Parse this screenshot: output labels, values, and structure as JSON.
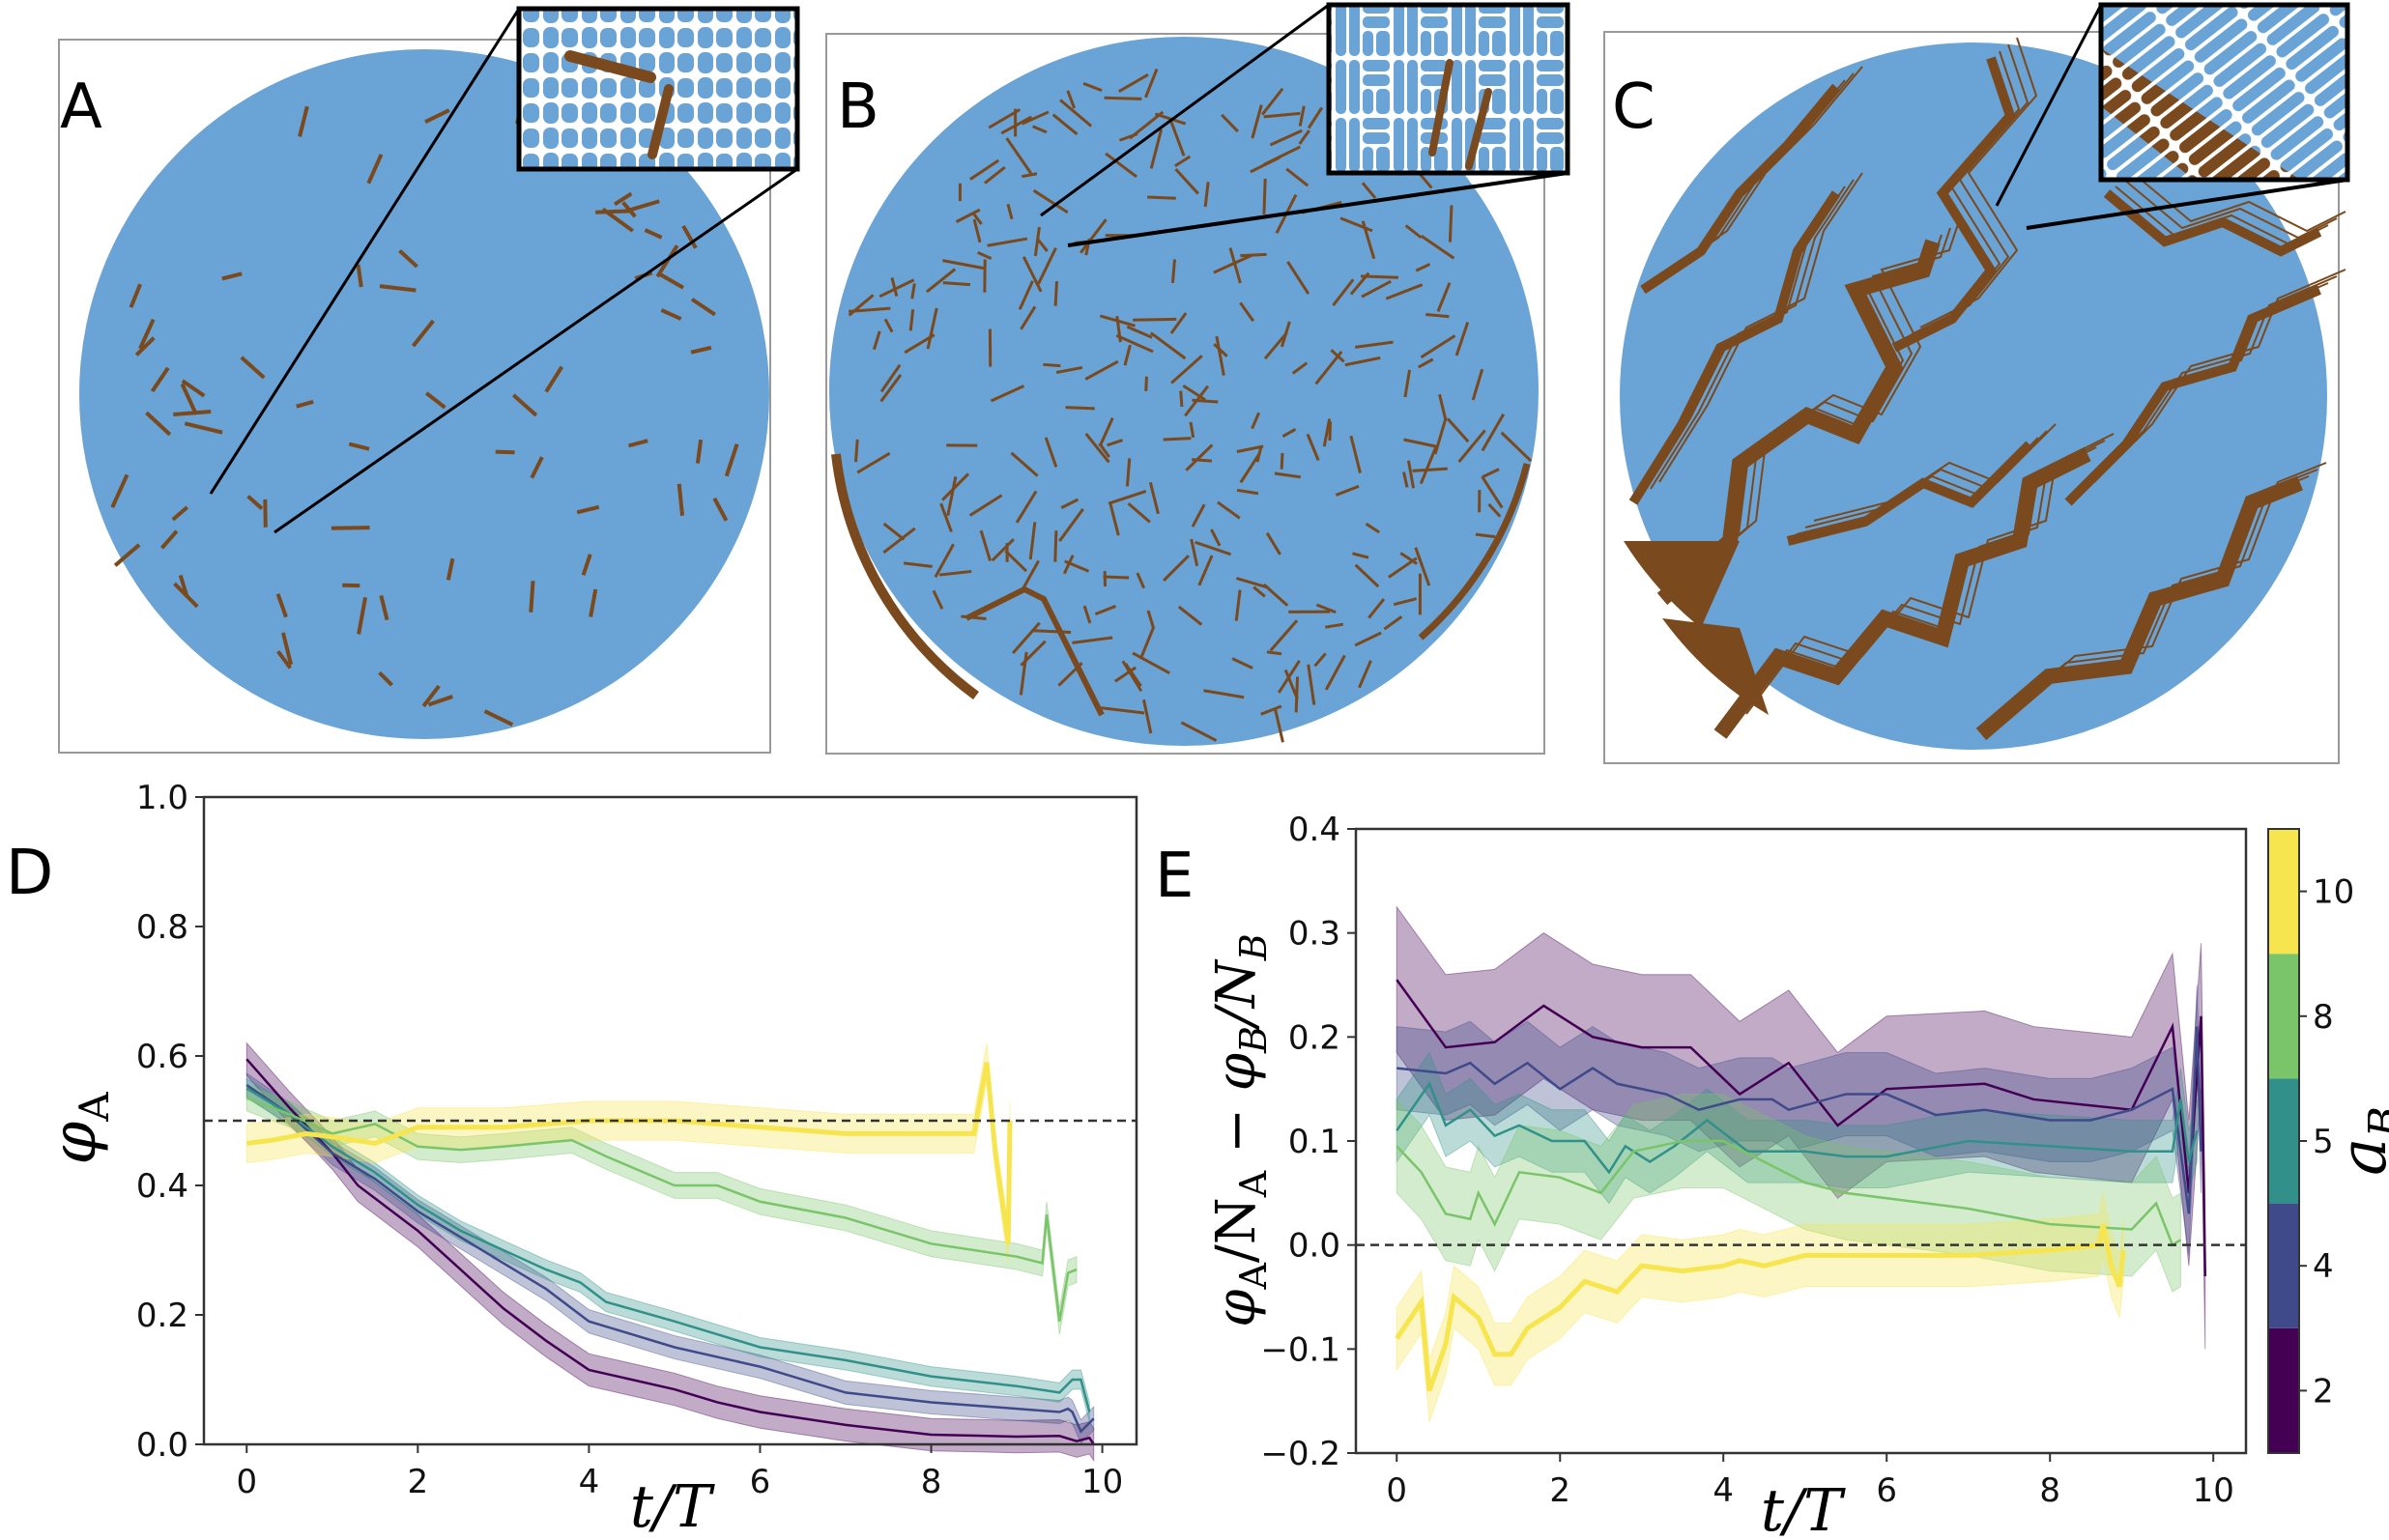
{
  "panels": [
    {
      "label": "A",
      "rod_count": 70
    },
    {
      "label": "B",
      "rod_count": 260
    },
    {
      "label": "C",
      "rod_count": 0
    }
  ],
  "colors": {
    "cells": "#6aa3d5",
    "rods": "#7a4a1e",
    "background": "#ffffff"
  },
  "colorbar": {
    "label_main": "a",
    "label_sub": "B",
    "ticks": [
      "2",
      "4",
      "5",
      "8",
      "10"
    ],
    "colors": [
      "#440154",
      "#3e4a89",
      "#31918a",
      "#7ac46a",
      "#f7e54f"
    ]
  },
  "chart_data": [
    {
      "panel_label": "D",
      "type": "line",
      "xlabel": "t/T",
      "ylabel_main": "φ",
      "ylabel_sub": "A",
      "xlim": [
        -0.5,
        10.4
      ],
      "ylim": [
        0.0,
        1.0
      ],
      "xticks": [
        "0",
        "2",
        "4",
        "6",
        "8",
        "10"
      ],
      "yticks": [
        "0.0",
        "0.2",
        "0.4",
        "0.6",
        "0.8",
        "1.0"
      ],
      "reference_line": 0.5,
      "legend": "colorbar",
      "series": [
        {
          "a_B": 2,
          "color": "#440154",
          "band": 0.025,
          "t": [
            0,
            0.5,
            1,
            1.3,
            2,
            2.5,
            3,
            3.5,
            4,
            4.5,
            5,
            5.5,
            6,
            7,
            8,
            9,
            9.5,
            9.7,
            9.85,
            9.9
          ],
          "y": [
            0.595,
            0.52,
            0.45,
            0.4,
            0.33,
            0.27,
            0.21,
            0.16,
            0.115,
            0.1,
            0.085,
            0.065,
            0.05,
            0.03,
            0.015,
            0.012,
            0.013,
            0.005,
            0.01,
            0.0
          ]
        },
        {
          "a_B": 4,
          "color": "#3e4a89",
          "band": 0.018,
          "t": [
            0,
            0.5,
            1,
            1.5,
            2,
            2.5,
            3,
            3.5,
            4,
            4.5,
            5,
            6,
            7,
            8,
            9,
            9.5,
            9.6,
            9.65,
            9.75,
            9.9
          ],
          "y": [
            0.555,
            0.51,
            0.45,
            0.41,
            0.36,
            0.32,
            0.28,
            0.24,
            0.19,
            0.17,
            0.15,
            0.12,
            0.08,
            0.065,
            0.055,
            0.05,
            0.055,
            0.05,
            0.02,
            0.04
          ]
        },
        {
          "a_B": 5,
          "color": "#31918a",
          "band": 0.015,
          "t": [
            0,
            0.5,
            1,
            1.5,
            2,
            2.5,
            3,
            3.5,
            3.9,
            4.2,
            5,
            6,
            7,
            8,
            9,
            9.5,
            9.65,
            9.75,
            9.85
          ],
          "y": [
            0.55,
            0.51,
            0.46,
            0.42,
            0.37,
            0.33,
            0.3,
            0.27,
            0.25,
            0.22,
            0.19,
            0.15,
            0.13,
            0.105,
            0.09,
            0.08,
            0.1,
            0.1,
            0.05
          ]
        },
        {
          "a_B": 8,
          "color": "#7ac46a",
          "band": 0.02,
          "t": [
            0,
            0.5,
            1,
            1.5,
            2,
            2.5,
            3,
            3.8,
            4.2,
            5,
            5.5,
            6,
            7,
            8,
            9,
            9.3,
            9.35,
            9.5,
            9.6,
            9.7
          ],
          "y": [
            0.535,
            0.51,
            0.48,
            0.495,
            0.46,
            0.455,
            0.46,
            0.47,
            0.445,
            0.4,
            0.4,
            0.375,
            0.35,
            0.31,
            0.29,
            0.28,
            0.355,
            0.19,
            0.265,
            0.27
          ]
        },
        {
          "a_B": 10,
          "color": "#f7e54f",
          "band": 0.03,
          "t": [
            0,
            0.3,
            0.7,
            1,
            1.5,
            2,
            3,
            4,
            5,
            6,
            7,
            8,
            8.5,
            8.65,
            8.75,
            8.9,
            8.92
          ],
          "y": [
            0.465,
            0.47,
            0.48,
            0.475,
            0.465,
            0.49,
            0.49,
            0.5,
            0.5,
            0.49,
            0.48,
            0.48,
            0.48,
            0.59,
            0.45,
            0.31,
            0.5
          ]
        }
      ]
    },
    {
      "panel_label": "E",
      "type": "line",
      "xlabel": "t/T",
      "ylabel_parts": [
        "φ",
        "A",
        "/N",
        "A",
        " − φ",
        "B",
        "/N",
        "B"
      ],
      "xlim": [
        -0.5,
        10.4
      ],
      "ylim": [
        -0.2,
        0.4
      ],
      "xticks": [
        "0",
        "2",
        "4",
        "6",
        "8",
        "10"
      ],
      "yticks": [
        "−0.2",
        "−0.1",
        "0.0",
        "0.1",
        "0.2",
        "0.3",
        "0.4"
      ],
      "reference_line": 0.0,
      "legend": "colorbar",
      "series": [
        {
          "a_B": 2,
          "color": "#440154",
          "band": 0.07,
          "t": [
            0,
            0.6,
            1.2,
            1.8,
            2.4,
            3,
            3.6,
            4.2,
            4.8,
            5.4,
            6,
            7.2,
            7.8,
            9,
            9.5,
            9.7,
            9.85,
            9.9
          ],
          "y": [
            0.255,
            0.19,
            0.195,
            0.23,
            0.2,
            0.19,
            0.19,
            0.145,
            0.175,
            0.115,
            0.15,
            0.155,
            0.14,
            0.13,
            0.21,
            0.05,
            0.22,
            -0.03
          ]
        },
        {
          "a_B": 4,
          "color": "#3e4a89",
          "band": 0.04,
          "t": [
            0,
            0.6,
            0.9,
            1.2,
            1.6,
            2,
            2.4,
            2.7,
            3.3,
            3.7,
            4.2,
            4.6,
            4.8,
            5.5,
            6,
            6.6,
            7.2,
            7.6,
            8,
            8.5,
            9,
            9.5,
            9.7,
            9.8,
            9.85
          ],
          "y": [
            0.17,
            0.165,
            0.175,
            0.155,
            0.175,
            0.15,
            0.17,
            0.155,
            0.145,
            0.13,
            0.14,
            0.14,
            0.13,
            0.145,
            0.145,
            0.125,
            0.13,
            0.125,
            0.12,
            0.12,
            0.13,
            0.15,
            0.03,
            0.21,
            0.09
          ]
        },
        {
          "a_B": 5,
          "color": "#31918a",
          "band": 0.03,
          "t": [
            0,
            0.4,
            0.6,
            0.9,
            1.2,
            1.5,
            1.9,
            2.3,
            2.6,
            2.8,
            3.1,
            3.4,
            3.8,
            4.3,
            5,
            5.5,
            6,
            7,
            8,
            9,
            9.5,
            9.6,
            9.7,
            9.8
          ],
          "y": [
            0.11,
            0.155,
            0.115,
            0.13,
            0.105,
            0.115,
            0.1,
            0.1,
            0.07,
            0.095,
            0.08,
            0.095,
            0.12,
            0.09,
            0.09,
            0.085,
            0.085,
            0.1,
            0.095,
            0.09,
            0.09,
            0.14,
            0.08,
            0.11
          ]
        },
        {
          "a_B": 8,
          "color": "#7ac46a",
          "band": 0.045,
          "t": [
            0,
            0.3,
            0.6,
            0.9,
            1.0,
            1.2,
            1.5,
            2,
            2.5,
            2.9,
            3.5,
            4,
            4.5,
            5,
            5.5,
            6,
            7,
            8,
            9,
            9.3,
            9.5,
            9.6
          ],
          "y": [
            0.095,
            0.07,
            0.03,
            0.025,
            0.05,
            0.02,
            0.07,
            0.065,
            0.05,
            0.09,
            0.1,
            0.1,
            0.08,
            0.06,
            0.05,
            0.045,
            0.035,
            0.02,
            0.015,
            0.04,
            0.0,
            0.005
          ]
        },
        {
          "a_B": 10,
          "color": "#f7e54f",
          "band": 0.03,
          "t": [
            0,
            0.3,
            0.4,
            0.6,
            0.7,
            1,
            1.2,
            1.4,
            1.6,
            2,
            2.3,
            2.7,
            3,
            3.5,
            4,
            4.2,
            4.5,
            5,
            6,
            7,
            8,
            8.6,
            8.65,
            8.75,
            8.85,
            8.9
          ],
          "y": [
            -0.09,
            -0.055,
            -0.14,
            -0.095,
            -0.05,
            -0.07,
            -0.105,
            -0.105,
            -0.08,
            -0.06,
            -0.035,
            -0.045,
            -0.02,
            -0.025,
            -0.02,
            -0.015,
            -0.02,
            -0.01,
            -0.01,
            -0.01,
            -0.005,
            0.0,
            0.02,
            -0.02,
            -0.04,
            -0.005
          ]
        }
      ]
    }
  ]
}
